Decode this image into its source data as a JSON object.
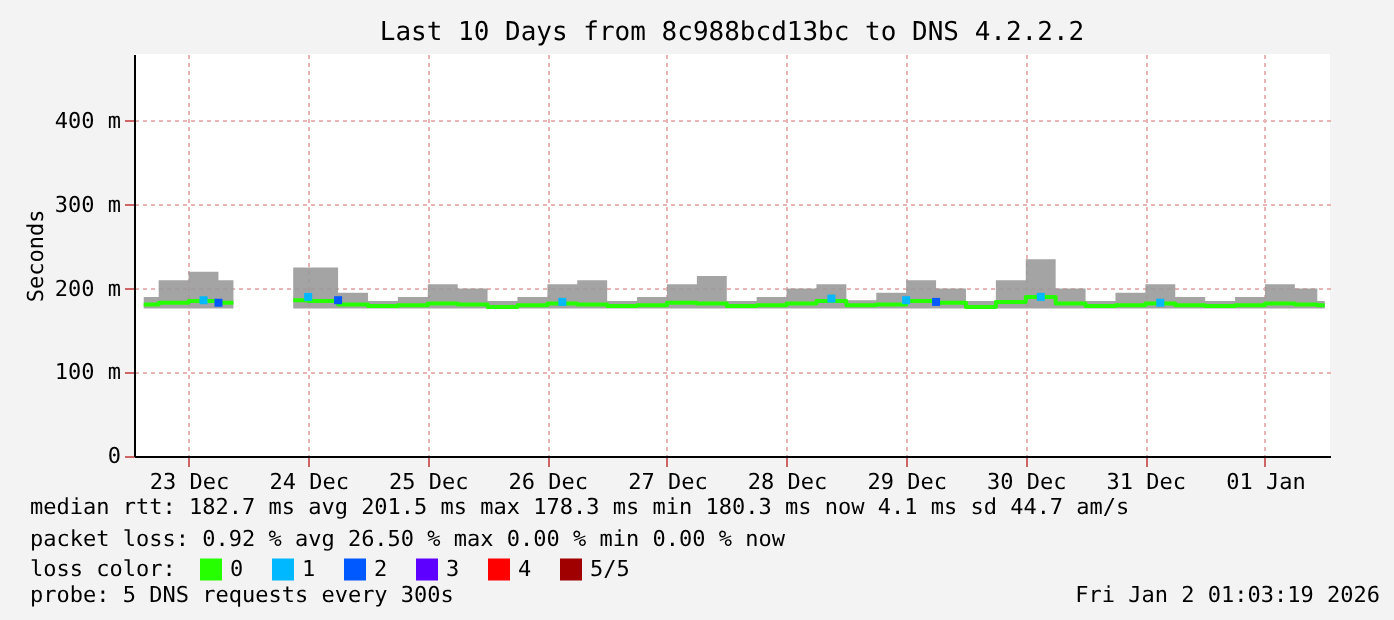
{
  "chart_data": {
    "type": "line",
    "title": "Last 10 Days from 8c988bcd13bc to DNS 4.2.2.2",
    "ylabel": "Seconds",
    "legend_title": "loss color:",
    "legend": "bottom",
    "grid": true,
    "marker": "none",
    "line_style": "solid",
    "xlim": [
      "2025-12-23T01:03",
      "2026-01-02T01:03"
    ],
    "xticks": [
      {
        "value": "2025-12-23T12:00",
        "label": "23 Dec"
      },
      {
        "value": "2025-12-24T12:00",
        "label": "24 Dec"
      },
      {
        "value": "2025-12-25T12:00",
        "label": "25 Dec"
      },
      {
        "value": "2025-12-26T12:00",
        "label": "26 Dec"
      },
      {
        "value": "2025-12-27T12:00",
        "label": "27 Dec"
      },
      {
        "value": "2025-12-28T12:00",
        "label": "28 Dec"
      },
      {
        "value": "2025-12-29T12:00",
        "label": "29 Dec"
      },
      {
        "value": "2025-12-30T12:00",
        "label": "30 Dec"
      },
      {
        "value": "2025-12-31T12:00",
        "label": "31 Dec"
      },
      {
        "value": "2026-01-01T12:00",
        "label": "01 Jan"
      }
    ],
    "ylim": [
      0,
      480
    ],
    "yticks": [
      0,
      {
        "value": 100,
        "label": "100 m"
      },
      {
        "value": 200,
        "label": "200 m"
      },
      {
        "value": 300,
        "label": "300 m"
      },
      {
        "value": 400,
        "label": "400 m"
      }
    ],
    "x": [
      "2025-12-23T03:00",
      "2025-12-23T09:00",
      "2025-12-23T15:00",
      "2025-12-23T21:00",
      "2025-12-24T03:00",
      "2025-12-24T09:00",
      "2025-12-24T15:00",
      "2025-12-24T21:00",
      "2025-12-25T03:00",
      "2025-12-25T09:00",
      "2025-12-25T15:00",
      "2025-12-25T21:00",
      "2025-12-26T03:00",
      "2025-12-26T09:00",
      "2025-12-26T15:00",
      "2025-12-26T21:00",
      "2025-12-27T03:00",
      "2025-12-27T09:00",
      "2025-12-27T15:00",
      "2025-12-27T21:00",
      "2025-12-28T03:00",
      "2025-12-28T09:00",
      "2025-12-28T15:00",
      "2025-12-28T21:00",
      "2025-12-29T03:00",
      "2025-12-29T09:00",
      "2025-12-29T15:00",
      "2025-12-29T21:00",
      "2025-12-30T03:00",
      "2025-12-30T09:00",
      "2025-12-30T15:00",
      "2025-12-30T21:00",
      "2025-12-31T03:00",
      "2025-12-31T09:00",
      "2025-12-31T15:00",
      "2025-12-31T21:00",
      "2026-01-01T03:00",
      "2026-01-01T09:00",
      "2026-01-01T15:00",
      "2026-01-01T21:00",
      "2026-01-02T00:00"
    ],
    "series": [
      {
        "name": "0",
        "color": "#26ff00",
        "values": [
          181,
          183,
          185,
          183,
          null,
          186,
          185,
          181,
          179,
          180,
          182,
          181,
          178,
          180,
          182,
          181,
          179,
          180,
          183,
          182,
          179,
          180,
          182,
          185,
          180,
          181,
          185,
          183,
          178,
          184,
          190,
          182,
          179,
          180,
          182,
          180,
          179,
          180,
          182,
          181,
          180
        ],
        "lower": [
          176,
          176,
          176,
          176,
          null,
          176,
          176,
          176,
          176,
          176,
          176,
          176,
          176,
          176,
          176,
          176,
          176,
          176,
          176,
          176,
          176,
          176,
          176,
          176,
          176,
          176,
          176,
          176,
          176,
          176,
          176,
          176,
          176,
          176,
          176,
          176,
          176,
          176,
          176,
          176,
          176
        ],
        "upper": [
          190,
          210,
          220,
          210,
          null,
          225,
          225,
          195,
          185,
          190,
          205,
          200,
          185,
          190,
          205,
          210,
          185,
          190,
          205,
          215,
          185,
          190,
          200,
          205,
          186,
          195,
          210,
          200,
          185,
          210,
          235,
          200,
          185,
          195,
          205,
          190,
          185,
          190,
          205,
          200,
          185
        ]
      },
      {
        "name": "1",
        "color": "#00b8ff",
        "type": "scatter",
        "marker": "square",
        "x": [
          "2025-12-23T15:00",
          "2025-12-24T12:00",
          "2025-12-26T15:00",
          "2025-12-28T21:00",
          "2025-12-29T12:00",
          "2025-12-30T15:00",
          "2025-12-31T15:00"
        ],
        "values": [
          186,
          190,
          184,
          188,
          186,
          190,
          183
        ]
      },
      {
        "name": "2",
        "color": "#0059ff",
        "type": "scatter",
        "marker": "square",
        "x": [
          "2025-12-23T18:00",
          "2025-12-24T18:00",
          "2025-12-29T18:00"
        ],
        "values": [
          183,
          186,
          184
        ]
      },
      {
        "name": "3",
        "color": "#5e00ff",
        "type": "scatter",
        "marker": "square",
        "values": [
          null,
          null,
          null,
          null,
          null,
          null,
          null,
          null,
          null,
          null,
          null,
          null,
          null,
          null,
          null,
          null,
          null,
          null,
          null,
          null,
          null,
          null,
          null,
          null,
          null,
          null,
          null,
          null,
          null,
          null,
          null,
          null,
          null,
          null,
          null,
          null,
          null,
          null,
          null,
          null,
          null
        ]
      },
      {
        "name": "4",
        "color": "#ff0000",
        "type": "scatter",
        "marker": "square",
        "values": [
          null,
          null,
          null,
          null,
          null,
          null,
          null,
          null,
          null,
          null,
          null,
          null,
          null,
          null,
          null,
          null,
          null,
          null,
          null,
          null,
          null,
          null,
          null,
          null,
          null,
          null,
          null,
          null,
          null,
          null,
          null,
          null,
          null,
          null,
          null,
          null,
          null,
          null,
          null,
          null,
          null
        ]
      },
      {
        "name": "5/5",
        "color": "#a10000",
        "type": "scatter",
        "marker": "square",
        "values": [
          null,
          null,
          null,
          null,
          null,
          null,
          null,
          null,
          null,
          null,
          null,
          null,
          null,
          null,
          null,
          null,
          null,
          null,
          null,
          null,
          null,
          null,
          null,
          null,
          null,
          null,
          null,
          null,
          null,
          null,
          null,
          null,
          null,
          null,
          null,
          null,
          null,
          null,
          null,
          null,
          null
        ]
      }
    ],
    "annotations": [
      "median rtt:  182.7 ms avg  201.5 ms max  178.3 ms min  180.3 ms now  4.1 ms sd  44.7   am/s",
      "packet loss: 0.92 % avg  26.50 % max  0.00 % min  0.00 % now",
      "probe:       5 DNS requests every 300s",
      "Fri Jan  2 01:03:19 2026"
    ]
  }
}
